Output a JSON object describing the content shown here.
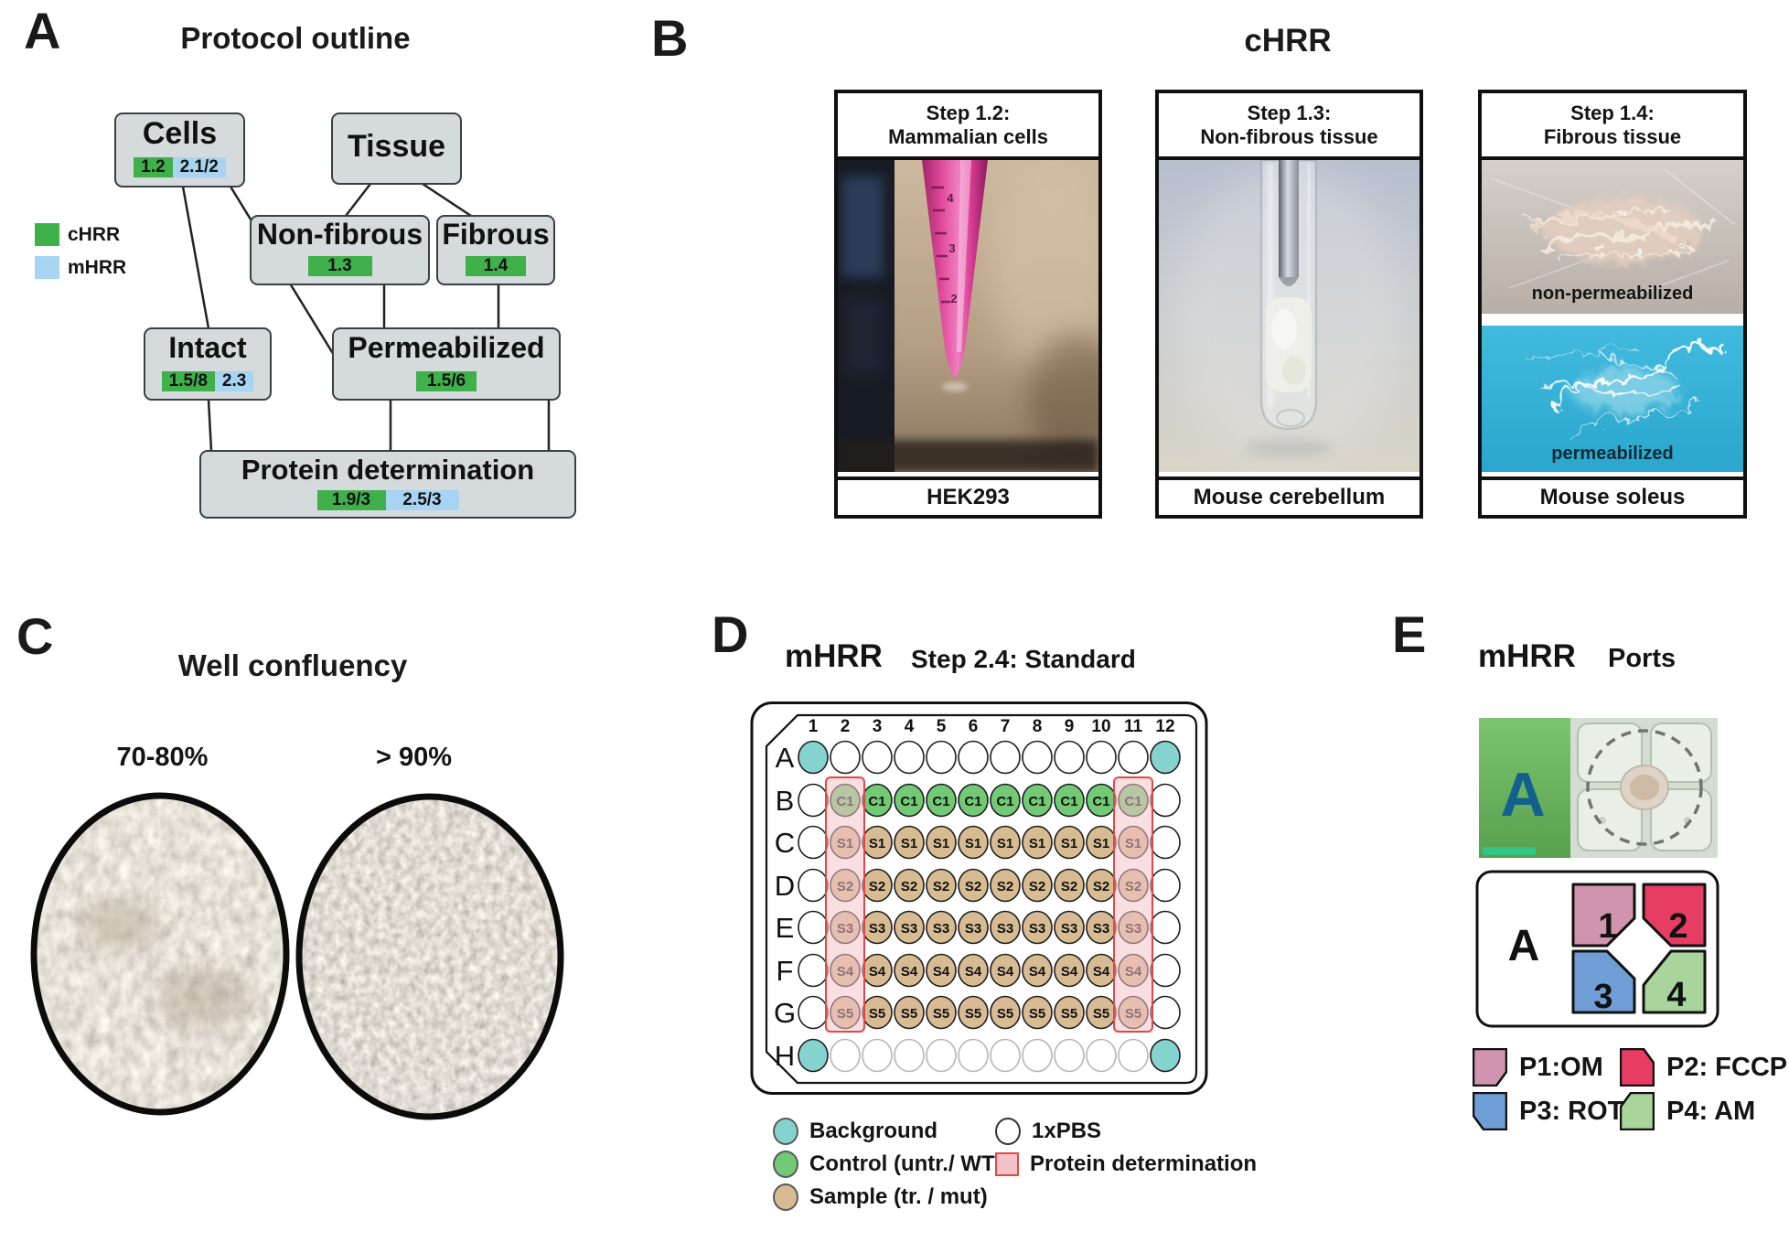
{
  "colors": {
    "chrr_green": "#3fb04a",
    "mhrr_blue": "#a7d4f0",
    "node_fill": "#d5dadd",
    "background_teal": "#84d3cf",
    "control_green": "#72c976",
    "sample_tan": "#d8bb93",
    "pbs_white": "#ffffff",
    "protein_pink_fill": "#f4c2ca",
    "protein_pink_border": "#e04848"
  },
  "panel_a": {
    "label": "A",
    "title": "Protocol outline",
    "legend": [
      {
        "label": "cHRR"
      },
      {
        "label": "mHRR"
      }
    ],
    "nodes": {
      "cells": {
        "title": "Cells",
        "badges": [
          {
            "text": "1.2",
            "type": "chrr"
          },
          {
            "text": "2.1/2",
            "type": "mhrr"
          }
        ]
      },
      "tissue": {
        "title": "Tissue",
        "badges": []
      },
      "non_fibrous": {
        "title": "Non-fibrous",
        "badges": [
          {
            "text": "1.3",
            "type": "chrr"
          }
        ]
      },
      "fibrous": {
        "title": "Fibrous",
        "badges": [
          {
            "text": "1.4",
            "type": "chrr"
          }
        ]
      },
      "intact": {
        "title": "Intact",
        "badges": [
          {
            "text": "1.5/8",
            "type": "chrr"
          },
          {
            "text": "2.3",
            "type": "mhrr"
          }
        ]
      },
      "permeabilized": {
        "title": "Permeabilized",
        "badges": [
          {
            "text": "1.5/6",
            "type": "chrr"
          }
        ]
      },
      "protein": {
        "title": "Protein determination",
        "badges": [
          {
            "text": "1.9/3",
            "type": "chrr"
          },
          {
            "text": "2.5/3",
            "type": "mhrr"
          }
        ]
      }
    }
  },
  "panel_b": {
    "label": "B",
    "title": "cHRR",
    "cards": [
      {
        "step": "Step 1.2:",
        "kind": "Mammalian cells",
        "caption": "HEK293",
        "graduations": [
          "4",
          "3",
          "2"
        ]
      },
      {
        "step": "Step 1.3:",
        "kind": "Non-fibrous tissue",
        "caption": "Mouse cerebellum"
      },
      {
        "step": "Step 1.4:",
        "kind": "Fibrous tissue",
        "caption": "Mouse soleus",
        "photo_labels": [
          "non-permeabilized",
          "permeabilized"
        ]
      }
    ]
  },
  "panel_c": {
    "label": "C",
    "title": "Well confluency",
    "images": [
      {
        "label": "70-80%"
      },
      {
        "label": "> 90%"
      }
    ]
  },
  "panel_d": {
    "label": "D",
    "title": "mHRR",
    "subtitle": "Step 2.4: Standard",
    "plate": {
      "columns": [
        "1",
        "2",
        "3",
        "4",
        "5",
        "6",
        "7",
        "8",
        "9",
        "10",
        "11",
        "12"
      ],
      "rows": [
        {
          "label": "A",
          "corner": "background",
          "fill": null,
          "text": null
        },
        {
          "label": "B",
          "corner": "pbs",
          "fill": "control",
          "text": "C1"
        },
        {
          "label": "C",
          "corner": "pbs",
          "fill": "sample",
          "text": "S1"
        },
        {
          "label": "D",
          "corner": "pbs",
          "fill": "sample",
          "text": "S2"
        },
        {
          "label": "E",
          "corner": "pbs",
          "fill": "sample",
          "text": "S3"
        },
        {
          "label": "F",
          "corner": "pbs",
          "fill": "sample",
          "text": "S4"
        },
        {
          "label": "G",
          "corner": "pbs",
          "fill": "sample",
          "text": "S5"
        },
        {
          "label": "H",
          "corner": "background",
          "fill": null,
          "text": null,
          "faint": true
        }
      ],
      "highlight_cols": [
        2,
        11
      ]
    },
    "legend_left": [
      {
        "label": "Background"
      },
      {
        "label": "Control (untr./ WT)"
      },
      {
        "label": "Sample (tr. / mut)"
      }
    ],
    "legend_right": [
      {
        "label": "1xPBS"
      },
      {
        "label": "Protein determination"
      }
    ]
  },
  "panel_e": {
    "label": "E",
    "title": "mHRR",
    "subtitle": "Ports",
    "photo_letter": "A",
    "diagram_letter": "A",
    "ports": [
      {
        "num": "1",
        "label": "P1:OM",
        "color": "#d094ae"
      },
      {
        "num": "2",
        "label": "P2: FCCP",
        "color": "#e73d63"
      },
      {
        "num": "3",
        "label": "P3: ROT",
        "color": "#6f9ed6"
      },
      {
        "num": "4",
        "label": "P4: AM",
        "color": "#a9d49c"
      }
    ]
  }
}
